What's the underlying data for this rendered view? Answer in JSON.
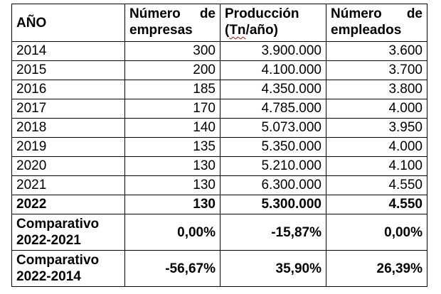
{
  "table": {
    "headers": {
      "year": "AÑO",
      "companies_line1_a": "Número",
      "companies_line1_b": "de",
      "companies_line2": "empresas",
      "production_line1": "Producción",
      "production_line2_pre": "(",
      "production_line2_unit": "Tn",
      "production_line2_post": "/año)",
      "employees_line1_a": "Número",
      "employees_line1_b": "de",
      "employees_line2": "empleados"
    },
    "rows": [
      {
        "year": "2014",
        "companies": "300",
        "production": "3.900.000",
        "employees": "3.600"
      },
      {
        "year": "2015",
        "companies": "200",
        "production": "4.100.000",
        "employees": "3.700"
      },
      {
        "year": "2016",
        "companies": "185",
        "production": "4.350.000",
        "employees": "3.800"
      },
      {
        "year": "2017",
        "companies": "170",
        "production": "4.785.000",
        "employees": "4.000"
      },
      {
        "year": "2018",
        "companies": "140",
        "production": "5.073.000",
        "employees": "3.950"
      },
      {
        "year": "2019",
        "companies": "135",
        "production": "5.350.000",
        "employees": "4.000"
      },
      {
        "year": "2020",
        "companies": "130",
        "production": "5.210.000",
        "employees": "4.100"
      },
      {
        "year": "2021",
        "companies": "130",
        "production": "6.300.000",
        "employees": "4.550"
      },
      {
        "year": "2022",
        "companies": "130",
        "production": "5.300.000",
        "employees": "4.550"
      }
    ],
    "comparisons": [
      {
        "label_line1": "Comparativo",
        "label_line2": "2022-2021",
        "companies": "0,00%",
        "production": "-15,87%",
        "employees": "0,00%"
      },
      {
        "label_line1": "Comparativo",
        "label_line2": "2022-2014",
        "companies": "-56,67%",
        "production": "35,90%",
        "employees": "26,39%"
      }
    ]
  }
}
